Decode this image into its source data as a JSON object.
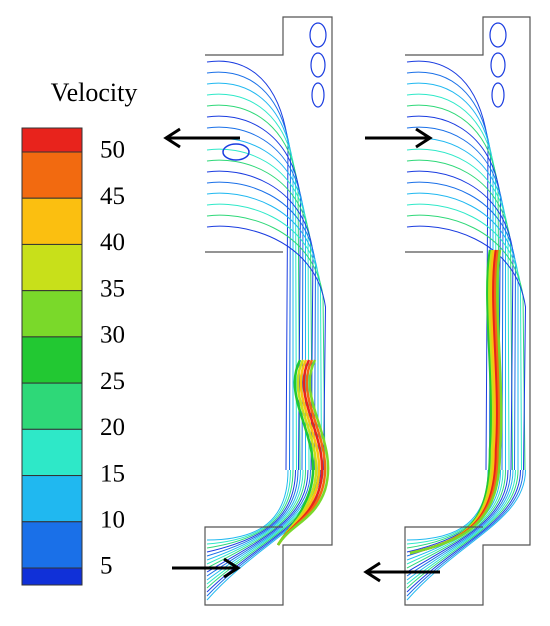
{
  "colorbar": {
    "title": "Velocity",
    "ticks": [
      50,
      45,
      40,
      35,
      30,
      25,
      20,
      15,
      10,
      5
    ],
    "colors": [
      "#e8231c",
      "#f26a10",
      "#fbbf10",
      "#c8e01a",
      "#7ad92a",
      "#22c832",
      "#2ed878",
      "#2ee8c8",
      "#20b8f0",
      "#1a70e8",
      "#1030d8"
    ]
  }
}
